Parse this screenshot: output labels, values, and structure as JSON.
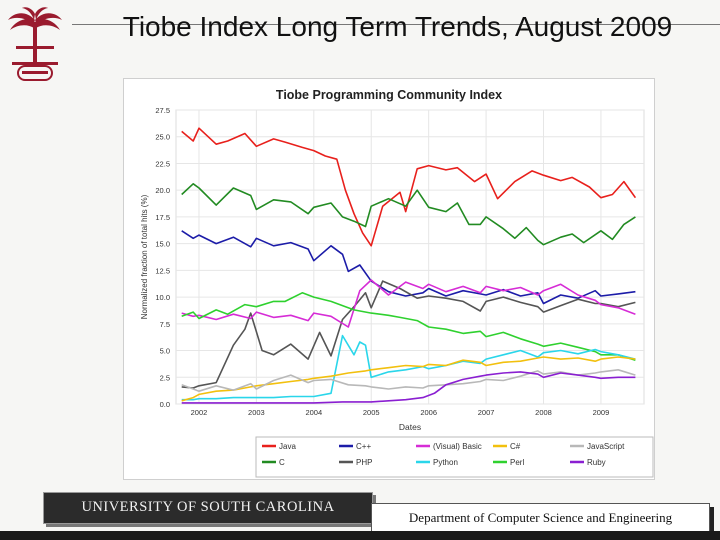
{
  "slide": {
    "title": "Tiobe Index Long Term Trends, August 2009",
    "footer_left": "UNIVERSITY OF SOUTH CAROLINA",
    "footer_right": "Department of Computer Science and Engineering",
    "logo_icon": "palmetto-tree-seal-icon",
    "logo_color": "#9a1b2e"
  },
  "chart_data": {
    "type": "line",
    "title": "Tiobe Programming Community Index",
    "xlabel": "Dates",
    "ylabel": "Normalized fraction of total hits (%)",
    "xlim": [
      2001.6,
      2009.75
    ],
    "ylim": [
      0,
      27.5
    ],
    "yticks": [
      "0.0",
      "2.5",
      "5.0",
      "7.5",
      "10.0",
      "12.5",
      "15.0",
      "17.5",
      "20.0",
      "22.5",
      "25.0",
      "27.5"
    ],
    "xticks": [
      "2002",
      "2003",
      "2004",
      "2005",
      "2006",
      "2007",
      "2008",
      "2009"
    ],
    "grid": true,
    "legend_position": "bottom",
    "series": [
      {
        "name": "Java",
        "color": "#e8201c",
        "x": [
          2001.7,
          2001.9,
          2002.0,
          2002.3,
          2002.5,
          2002.8,
          2003.0,
          2003.3,
          2003.5,
          2003.8,
          2004.0,
          2004.2,
          2004.4,
          2004.55,
          2004.7,
          2004.85,
          2005.0,
          2005.2,
          2005.5,
          2005.6,
          2005.8,
          2006.0,
          2006.3,
          2006.5,
          2006.8,
          2007.0,
          2007.2,
          2007.5,
          2007.8,
          2008.0,
          2008.3,
          2008.5,
          2008.8,
          2009.0,
          2009.2,
          2009.4,
          2009.6
        ],
        "y": [
          25.5,
          24.6,
          25.8,
          24.3,
          24.6,
          25.3,
          24.1,
          24.8,
          24.5,
          24.0,
          23.7,
          23.2,
          22.9,
          20.0,
          17.8,
          16.0,
          14.8,
          18.5,
          19.8,
          18.0,
          22.0,
          22.3,
          21.9,
          22.1,
          20.8,
          21.5,
          19.2,
          20.8,
          21.8,
          21.4,
          20.9,
          21.2,
          20.3,
          19.3,
          19.6,
          20.8,
          19.3
        ]
      },
      {
        "name": "C",
        "color": "#228b22",
        "x": [
          2001.7,
          2001.9,
          2002.0,
          2002.3,
          2002.6,
          2002.9,
          2003.0,
          2003.3,
          2003.6,
          2003.9,
          2004.0,
          2004.3,
          2004.5,
          2004.7,
          2004.9,
          2005.0,
          2005.3,
          2005.6,
          2005.8,
          2006.0,
          2006.3,
          2006.5,
          2006.7,
          2006.9,
          2007.0,
          2007.3,
          2007.5,
          2007.7,
          2007.9,
          2008.0,
          2008.3,
          2008.5,
          2008.7,
          2009.0,
          2009.2,
          2009.4,
          2009.6
        ],
        "y": [
          19.6,
          20.6,
          20.2,
          18.6,
          20.2,
          19.5,
          18.2,
          19.1,
          18.9,
          17.8,
          18.4,
          18.8,
          17.5,
          17.1,
          16.6,
          18.5,
          19.2,
          18.5,
          20.0,
          18.4,
          18.0,
          18.8,
          16.8,
          16.8,
          17.5,
          16.4,
          15.5,
          16.5,
          15.3,
          14.9,
          15.6,
          15.9,
          15.1,
          16.2,
          15.4,
          16.8,
          17.5
        ]
      },
      {
        "name": "C++",
        "color": "#1c1ca8",
        "x": [
          2001.7,
          2001.9,
          2002.0,
          2002.3,
          2002.6,
          2002.9,
          2003.0,
          2003.3,
          2003.6,
          2003.9,
          2004.0,
          2004.3,
          2004.5,
          2004.6,
          2004.8,
          2005.0,
          2005.3,
          2005.6,
          2005.9,
          2006.0,
          2006.3,
          2006.6,
          2006.9,
          2007.0,
          2007.3,
          2007.6,
          2007.9,
          2008.0,
          2008.3,
          2008.6,
          2008.9,
          2009.0,
          2009.3,
          2009.6
        ],
        "y": [
          16.2,
          15.5,
          15.8,
          15.0,
          15.6,
          14.7,
          15.5,
          14.8,
          15.1,
          14.5,
          13.4,
          14.8,
          14.0,
          12.4,
          13.0,
          11.5,
          10.5,
          10.1,
          10.4,
          10.8,
          10.1,
          10.6,
          10.3,
          10.2,
          10.7,
          10.1,
          10.4,
          9.4,
          10.2,
          9.9,
          10.6,
          10.1,
          10.3,
          10.5
        ]
      },
      {
        "name": "PHP",
        "color": "#555555",
        "x": [
          2001.7,
          2001.9,
          2002.0,
          2002.3,
          2002.6,
          2002.8,
          2002.9,
          2003.1,
          2003.3,
          2003.6,
          2003.9,
          2004.1,
          2004.3,
          2004.5,
          2004.7,
          2004.9,
          2005.0,
          2005.2,
          2005.5,
          2005.8,
          2006.0,
          2006.3,
          2006.6,
          2006.9,
          2007.0,
          2007.3,
          2007.6,
          2007.9,
          2008.0,
          2008.3,
          2008.6,
          2008.9,
          2009.0,
          2009.3,
          2009.6
        ],
        "y": [
          1.6,
          1.5,
          1.7,
          2.0,
          5.5,
          7.0,
          8.5,
          5.0,
          4.6,
          5.6,
          4.2,
          6.7,
          4.5,
          7.9,
          9.1,
          10.4,
          9.0,
          11.5,
          10.8,
          9.9,
          10.1,
          9.9,
          9.6,
          8.7,
          9.6,
          10.0,
          9.5,
          9.1,
          8.6,
          9.2,
          9.8,
          9.4,
          9.4,
          9.1,
          9.5
        ]
      },
      {
        "name": "(Visual) Basic",
        "color": "#d62cd6",
        "x": [
          2001.7,
          2001.9,
          2002.0,
          2002.3,
          2002.6,
          2002.9,
          2003.0,
          2003.3,
          2003.6,
          2003.9,
          2004.0,
          2004.3,
          2004.6,
          2004.8,
          2005.0,
          2005.3,
          2005.6,
          2005.9,
          2006.0,
          2006.3,
          2006.6,
          2006.9,
          2007.0,
          2007.3,
          2007.6,
          2007.9,
          2008.0,
          2008.3,
          2008.6,
          2008.9,
          2009.0,
          2009.3,
          2009.6
        ],
        "y": [
          8.5,
          8.2,
          8.3,
          7.9,
          8.4,
          8.0,
          8.6,
          8.1,
          8.3,
          7.8,
          8.5,
          8.2,
          7.2,
          10.6,
          11.6,
          10.2,
          11.4,
          10.8,
          11.2,
          10.5,
          11.0,
          10.4,
          11.0,
          10.6,
          10.9,
          10.2,
          10.6,
          11.2,
          10.2,
          9.7,
          9.3,
          9.0,
          8.4
        ]
      },
      {
        "name": "Perl",
        "color": "#2fd12f",
        "x": [
          2001.7,
          2001.9,
          2002.0,
          2002.3,
          2002.5,
          2002.8,
          2003.0,
          2003.3,
          2003.5,
          2003.8,
          2004.0,
          2004.3,
          2004.5,
          2004.7,
          2005.0,
          2005.3,
          2005.5,
          2005.8,
          2006.0,
          2006.3,
          2006.6,
          2006.9,
          2007.0,
          2007.3,
          2007.6,
          2007.9,
          2008.0,
          2008.3,
          2008.6,
          2008.9,
          2009.0,
          2009.3,
          2009.6
        ],
        "y": [
          8.2,
          8.6,
          8.0,
          8.8,
          8.4,
          9.3,
          9.1,
          9.6,
          9.6,
          10.4,
          10.0,
          9.6,
          9.2,
          8.8,
          8.5,
          8.3,
          8.1,
          7.8,
          7.2,
          7.0,
          6.6,
          6.8,
          6.3,
          6.7,
          6.1,
          5.6,
          5.4,
          5.7,
          5.3,
          4.9,
          4.6,
          4.6,
          4.1
        ]
      },
      {
        "name": "Python",
        "color": "#2ad6ea",
        "x": [
          2001.7,
          2001.9,
          2002.0,
          2002.3,
          2002.6,
          2002.9,
          2003.0,
          2003.3,
          2003.6,
          2003.9,
          2004.0,
          2004.3,
          2004.5,
          2004.7,
          2004.8,
          2004.9,
          2005.0,
          2005.3,
          2005.6,
          2005.9,
          2006.0,
          2006.3,
          2006.6,
          2006.9,
          2007.0,
          2007.3,
          2007.6,
          2007.9,
          2008.0,
          2008.3,
          2008.6,
          2008.9,
          2009.0,
          2009.3,
          2009.6
        ],
        "y": [
          0.4,
          0.4,
          0.5,
          0.5,
          0.6,
          0.6,
          0.6,
          0.6,
          0.7,
          0.7,
          0.7,
          1.0,
          6.4,
          4.6,
          5.8,
          5.5,
          2.5,
          3.0,
          3.2,
          3.5,
          3.3,
          3.6,
          4.0,
          3.8,
          4.2,
          4.6,
          5.0,
          4.4,
          4.8,
          5.0,
          4.7,
          5.1,
          4.9,
          4.6,
          4.2
        ]
      },
      {
        "name": "C#",
        "color": "#f2c00e",
        "x": [
          2001.7,
          2001.9,
          2002.0,
          2002.3,
          2002.6,
          2002.9,
          2003.0,
          2003.3,
          2003.6,
          2003.9,
          2004.0,
          2004.3,
          2004.6,
          2004.9,
          2005.0,
          2005.3,
          2005.6,
          2005.9,
          2006.0,
          2006.3,
          2006.6,
          2006.9,
          2007.0,
          2007.3,
          2007.6,
          2007.9,
          2008.0,
          2008.3,
          2008.6,
          2008.9,
          2009.0,
          2009.3,
          2009.6
        ],
        "y": [
          0.3,
          0.6,
          0.9,
          1.2,
          1.3,
          1.6,
          1.7,
          1.9,
          2.1,
          2.3,
          2.4,
          2.6,
          2.9,
          3.1,
          3.2,
          3.4,
          3.6,
          3.5,
          3.7,
          3.6,
          4.1,
          3.9,
          3.6,
          3.9,
          4.0,
          4.3,
          4.4,
          4.2,
          4.3,
          4.0,
          4.2,
          4.4,
          4.2
        ]
      },
      {
        "name": "JavaScript",
        "color": "#b8b8b8",
        "x": [
          2001.7,
          2001.9,
          2002.0,
          2002.3,
          2002.6,
          2002.9,
          2003.0,
          2003.3,
          2003.6,
          2003.9,
          2004.0,
          2004.3,
          2004.6,
          2004.9,
          2005.0,
          2005.3,
          2005.6,
          2005.9,
          2006.0,
          2006.3,
          2006.6,
          2006.9,
          2007.0,
          2007.3,
          2007.6,
          2007.9,
          2008.0,
          2008.3,
          2008.6,
          2008.9,
          2009.0,
          2009.3,
          2009.6
        ],
        "y": [
          1.8,
          1.4,
          1.2,
          1.7,
          1.3,
          1.9,
          1.4,
          2.2,
          2.7,
          2.0,
          2.2,
          2.3,
          1.8,
          1.7,
          1.6,
          1.4,
          1.6,
          1.5,
          1.7,
          1.8,
          1.9,
          2.1,
          2.3,
          2.2,
          2.6,
          3.1,
          2.8,
          3.0,
          2.7,
          2.9,
          3.0,
          3.2,
          2.7
        ]
      },
      {
        "name": "Ruby",
        "color": "#8a1fd1",
        "x": [
          2001.7,
          2002.0,
          2002.5,
          2003.0,
          2003.5,
          2004.0,
          2004.5,
          2005.0,
          2005.3,
          2005.6,
          2005.9,
          2006.1,
          2006.3,
          2006.6,
          2006.9,
          2007.0,
          2007.3,
          2007.6,
          2007.9,
          2008.0,
          2008.3,
          2008.6,
          2008.9,
          2009.0,
          2009.3,
          2009.6
        ],
        "y": [
          0.1,
          0.1,
          0.1,
          0.1,
          0.1,
          0.1,
          0.2,
          0.2,
          0.3,
          0.4,
          0.6,
          1.0,
          1.8,
          2.3,
          2.6,
          2.7,
          2.9,
          3.0,
          2.8,
          2.5,
          2.9,
          2.7,
          2.5,
          2.4,
          2.5,
          2.5
        ]
      }
    ]
  }
}
